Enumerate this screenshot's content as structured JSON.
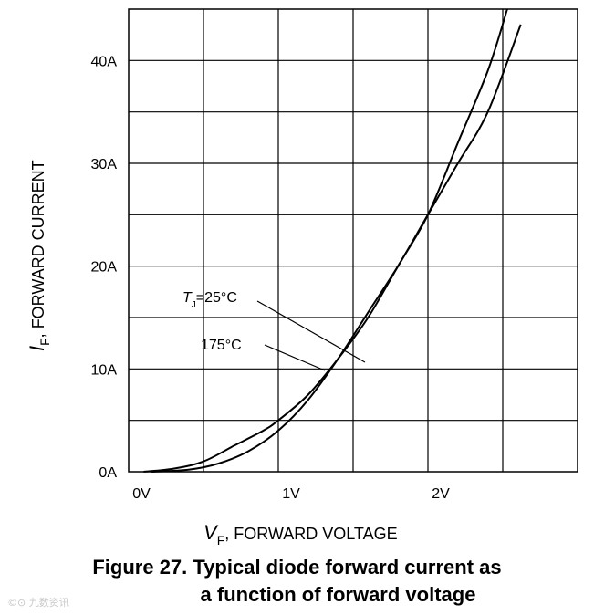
{
  "chart_data": {
    "type": "line",
    "x_ticks": [
      "0V",
      "1V",
      "2V"
    ],
    "y_ticks": [
      "0A",
      "10A",
      "20A",
      "30A",
      "40A"
    ],
    "xlim": [
      0,
      3
    ],
    "ylim": [
      0,
      45
    ],
    "grid": true,
    "ylabel": {
      "symbol": "I",
      "subscript": "F",
      "text": ", FORWARD CURRENT"
    },
    "xlabel": {
      "symbol": "V",
      "subscript": "F",
      "text": ", FORWARD VOLTAGE"
    },
    "series": [
      {
        "name": "TJ=25°C",
        "label": {
          "symbol": "T",
          "subscript": "J",
          "text": "=25°C"
        },
        "x": [
          0.15,
          0.4,
          0.6,
          0.8,
          1.0,
          1.2,
          1.4,
          1.6,
          1.8,
          2.0,
          2.2,
          2.4,
          2.62
        ],
        "y": [
          0,
          0.2,
          0.8,
          2.0,
          4.0,
          7.0,
          11.0,
          15.5,
          20.0,
          25.0,
          30.0,
          35.0,
          43.5
        ]
      },
      {
        "name": "175°C",
        "label": {
          "symbol": "",
          "subscript": "",
          "text": "175°C"
        },
        "x": [
          0.1,
          0.3,
          0.5,
          0.7,
          0.9,
          1.0,
          1.2,
          1.4,
          1.6,
          1.8,
          2.0,
          2.2,
          2.4,
          2.53
        ],
        "y": [
          0,
          0.3,
          1.0,
          2.5,
          4.0,
          5.0,
          7.5,
          11.0,
          15.0,
          20.0,
          25.0,
          32.0,
          39.0,
          45.0
        ]
      }
    ]
  },
  "caption": {
    "line1": "Figure 27. Typical diode forward current as",
    "line2": "a function of forward voltage"
  },
  "watermark": "©⊙ 九数资讯"
}
